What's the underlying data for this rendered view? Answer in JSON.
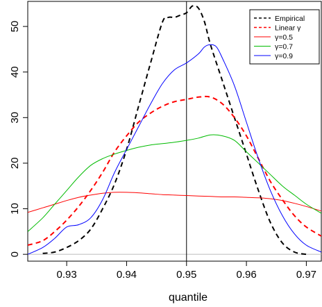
{
  "chart_data": {
    "type": "line",
    "title": "",
    "xlabel": "quantile",
    "ylabel": "",
    "xlim": [
      0.9235,
      0.9725
    ],
    "ylim": [
      -1.5,
      55.5
    ],
    "x_ticks": [
      0.93,
      0.94,
      0.95,
      0.96,
      0.97
    ],
    "x_tick_labels": [
      "0.93",
      "0.94",
      "0.95",
      "0.96",
      "0.97"
    ],
    "y_ticks": [
      0,
      10,
      20,
      30,
      40,
      50
    ],
    "y_tick_labels": [
      "0",
      "10",
      "20",
      "30",
      "40",
      "50"
    ],
    "reference_vertical_line": 0.95,
    "reference_horizontal_line": 0,
    "legend_position": "top-right",
    "series": [
      {
        "name": "Empirical",
        "color": "#000000",
        "dash": "dashed",
        "x": [
          0.926,
          0.928,
          0.93,
          0.932,
          0.934,
          0.936,
          0.938,
          0.94,
          0.942,
          0.944,
          0.946,
          0.947,
          0.948,
          0.949,
          0.95,
          0.951,
          0.952,
          0.953,
          0.954,
          0.956,
          0.958,
          0.96,
          0.962,
          0.964,
          0.966,
          0.968,
          0.97
        ],
        "y": [
          0.2,
          0.5,
          1.5,
          3,
          5.5,
          10,
          15.5,
          23,
          32.5,
          42,
          51,
          52,
          52,
          52.5,
          53,
          54.5,
          54,
          51,
          46,
          38,
          30,
          22,
          14,
          7,
          2.5,
          0.5,
          0
        ]
      },
      {
        "name": "Linear γ",
        "color": "#ff0000",
        "dash": "dashed",
        "x": [
          0.9235,
          0.926,
          0.928,
          0.93,
          0.932,
          0.934,
          0.936,
          0.938,
          0.94,
          0.942,
          0.944,
          0.946,
          0.948,
          0.95,
          0.952,
          0.954,
          0.956,
          0.958,
          0.96,
          0.962,
          0.964,
          0.966,
          0.968,
          0.97,
          0.9725
        ],
        "y": [
          2,
          3,
          5,
          7.5,
          10.5,
          14,
          18,
          22.5,
          26,
          29,
          31,
          32.5,
          33.5,
          34,
          34.5,
          34.5,
          33,
          30,
          26,
          21,
          16,
          12,
          8.5,
          6,
          4
        ]
      },
      {
        "name": "γ=0.5",
        "color": "#ff0000",
        "dash": "solid",
        "x": [
          0.9235,
          0.926,
          0.928,
          0.93,
          0.932,
          0.934,
          0.936,
          0.938,
          0.94,
          0.942,
          0.944,
          0.946,
          0.948,
          0.95,
          0.952,
          0.954,
          0.956,
          0.958,
          0.96,
          0.962,
          0.964,
          0.966,
          0.968,
          0.97,
          0.9725
        ],
        "y": [
          9.2,
          10.2,
          11,
          11.8,
          12.5,
          13,
          13.4,
          13.6,
          13.6,
          13.5,
          13.3,
          13.1,
          13,
          12.9,
          12.8,
          12.7,
          12.6,
          12.6,
          12.5,
          12.4,
          12.2,
          11.8,
          11.2,
          10.5,
          9.5
        ]
      },
      {
        "name": "γ=0.7",
        "color": "#00bb00",
        "dash": "solid",
        "x": [
          0.9235,
          0.926,
          0.928,
          0.93,
          0.932,
          0.934,
          0.936,
          0.938,
          0.94,
          0.942,
          0.944,
          0.946,
          0.948,
          0.95,
          0.952,
          0.954,
          0.956,
          0.958,
          0.96,
          0.962,
          0.964,
          0.966,
          0.968,
          0.97,
          0.9725
        ],
        "y": [
          5,
          8,
          11,
          14,
          17,
          19.5,
          21,
          22,
          22.8,
          23.5,
          24,
          24.3,
          24.6,
          25,
          25.5,
          26.2,
          26,
          25,
          22.5,
          20,
          17.5,
          15,
          13,
          11,
          9
        ]
      },
      {
        "name": "γ=0.9",
        "color": "#0000ff",
        "dash": "solid",
        "x": [
          0.9235,
          0.926,
          0.928,
          0.93,
          0.932,
          0.934,
          0.936,
          0.938,
          0.94,
          0.942,
          0.944,
          0.946,
          0.948,
          0.95,
          0.952,
          0.953,
          0.954,
          0.955,
          0.956,
          0.958,
          0.96,
          0.962,
          0.964,
          0.966,
          0.968,
          0.97,
          0.9725
        ],
        "y": [
          0,
          1.5,
          3.5,
          6,
          6.5,
          8,
          12,
          18,
          23,
          28,
          33,
          37.5,
          40.5,
          42,
          44,
          45.5,
          46,
          45.5,
          43,
          37,
          29,
          21,
          14,
          8.5,
          4.5,
          2,
          0.5
        ]
      }
    ],
    "legend_entries": [
      "Empirical",
      "Linear γ",
      "γ=0.5",
      "γ=0.7",
      "γ=0.9"
    ]
  }
}
